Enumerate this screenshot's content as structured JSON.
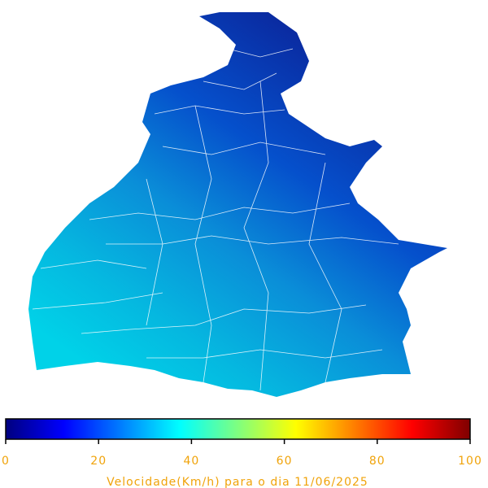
{
  "colorbar": {
    "label": "Velocidade(Km/h) para o dia 11/06/2025",
    "lim": [
      0,
      100
    ],
    "ticks": [
      0,
      20,
      40,
      60,
      80,
      100
    ],
    "colors": [
      "#00007f",
      "#0000ff",
      "#007fff",
      "#00ffff",
      "#7fff7f",
      "#ffff00",
      "#ff7f00",
      "#ff0000",
      "#7f0000"
    ]
  }
}
